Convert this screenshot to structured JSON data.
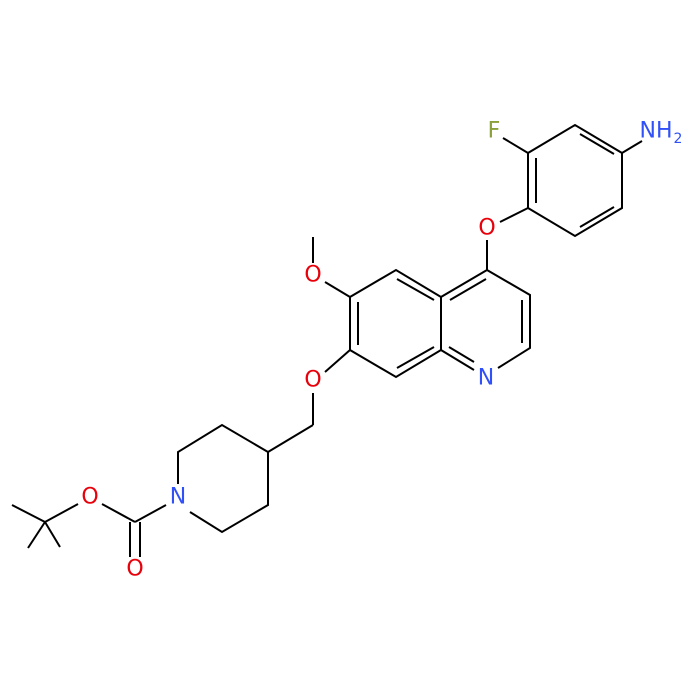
{
  "atoms": [
    {
      "text": "F"
    },
    {
      "text": "NH",
      "subscript": "2"
    },
    {
      "text": "O"
    },
    {
      "text": "O"
    },
    {
      "text": "O"
    },
    {
      "text": "N"
    },
    {
      "text": "N"
    },
    {
      "text": "O"
    },
    {
      "text": "O"
    }
  ]
}
